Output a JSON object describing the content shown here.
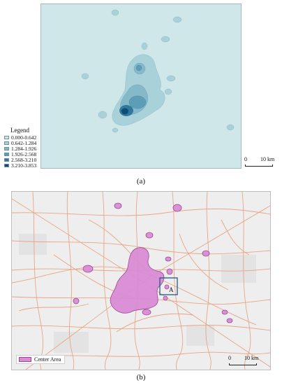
{
  "panel_a": {
    "caption": "(a)",
    "legend": {
      "title": "Legend",
      "items": [
        {
          "label": "0.000-0.642",
          "color": "#cfe7e9"
        },
        {
          "label": "0.642-1.284",
          "color": "#a9d1da"
        },
        {
          "label": "1.284-1.926",
          "color": "#84b9ca"
        },
        {
          "label": "1.926-2.568",
          "color": "#5d9db6"
        },
        {
          "label": "2.568-3.210",
          "color": "#33789c"
        },
        {
          "label": "3.210-3.853",
          "color": "#0e4c72"
        }
      ]
    },
    "scale": {
      "start": "0",
      "end": "10 km"
    }
  },
  "panel_b": {
    "caption": "(b)",
    "legend_label": "Center Area",
    "inset_label": "A",
    "scale": {
      "start": "0",
      "end": "10 km"
    },
    "colors": {
      "center_area": "#d98bd4",
      "roads": "#e8a27d",
      "inset_box": "#1f5a8a"
    }
  }
}
